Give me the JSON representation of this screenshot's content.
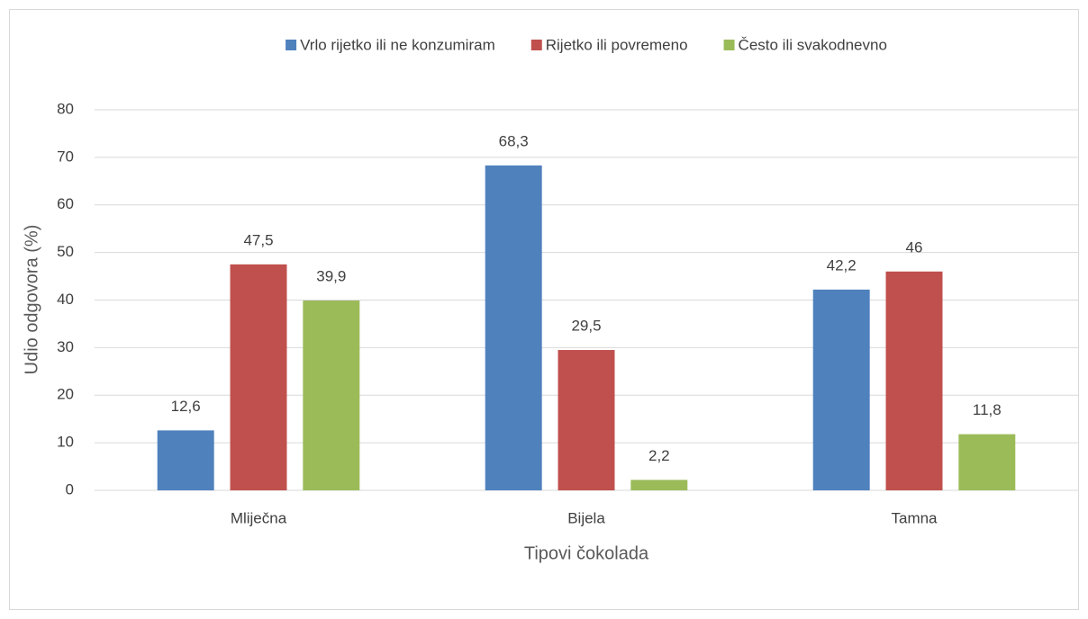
{
  "chart_data": {
    "type": "bar",
    "categories": [
      "Mliječna",
      "Bijela",
      "Tamna"
    ],
    "series": [
      {
        "name": "Vrlo rijetko ili ne konzumiram",
        "color": "#4f81bd",
        "values": [
          12.6,
          68.3,
          42.2
        ],
        "value_labels": [
          "12,6",
          "68,3",
          "42,2"
        ]
      },
      {
        "name": "Rijetko ili povremeno",
        "color": "#c0504d",
        "values": [
          47.5,
          29.5,
          46
        ],
        "value_labels": [
          "47,5",
          "29,5",
          "46"
        ]
      },
      {
        "name": "Često ili svakodnevno",
        "color": "#9bbb59",
        "values": [
          39.9,
          2.2,
          11.8
        ],
        "value_labels": [
          "39,9",
          "2,2",
          "11,8"
        ]
      }
    ],
    "xlabel": "Tipovi čokolada",
    "ylabel": "Udio odgovora (%)",
    "ylim": [
      0,
      80
    ],
    "yticks": [
      0,
      10,
      20,
      30,
      40,
      50,
      60,
      70,
      80
    ],
    "grid": true,
    "legend": "top"
  }
}
